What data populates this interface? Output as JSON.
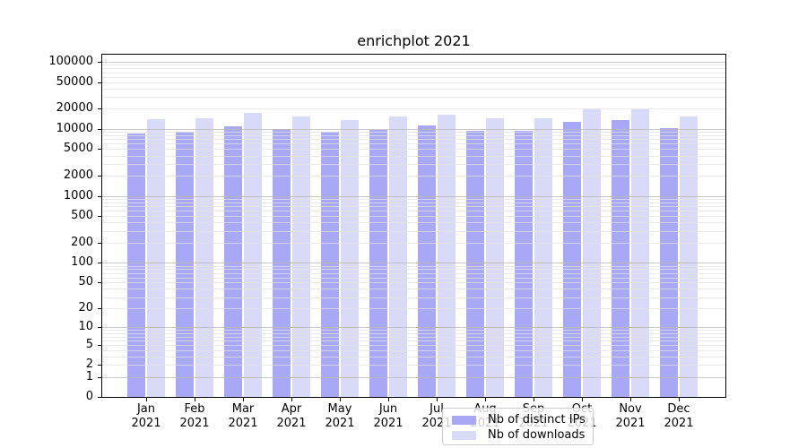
{
  "chart_data": {
    "type": "bar",
    "title": "enrichplot 2021",
    "categories": [
      "Jan",
      "Feb",
      "Mar",
      "Apr",
      "May",
      "Jun",
      "Jul",
      "Aug",
      "Sep",
      "Oct",
      "Nov",
      "Dec"
    ],
    "year_label": "2021",
    "series": [
      {
        "name": "Nb of distinct IPs",
        "color": "#a8a8f6",
        "values": [
          8600,
          9200,
          10900,
          10100,
          9200,
          9700,
          11400,
          9300,
          9300,
          12800,
          13500,
          10400
        ]
      },
      {
        "name": "Nb of downloads",
        "color": "#d9d9f8",
        "values": [
          14100,
          14500,
          17500,
          15500,
          13700,
          15100,
          16400,
          14500,
          14500,
          19900,
          19900,
          15500
        ]
      }
    ],
    "y_scale": "log1p",
    "ylim": [
      0,
      128000
    ],
    "y_tick_values": [
      0,
      1,
      2,
      5,
      10,
      20,
      50,
      100,
      200,
      500,
      1000,
      2000,
      5000,
      10000,
      20000,
      50000,
      100000
    ],
    "y_tick_labels": [
      "0",
      "1",
      "2",
      "5",
      "10",
      "20",
      "50",
      "100",
      "200",
      "500",
      "1000",
      "2000",
      "5000",
      "10000",
      "20000",
      "50000",
      "100000"
    ],
    "grid": "both",
    "legend_position": "lower center",
    "colors": {
      "axis": "#000000",
      "grid_major": "#bcbcbc",
      "grid_minor": "#e4e4e4",
      "background": "#ffffff"
    }
  }
}
